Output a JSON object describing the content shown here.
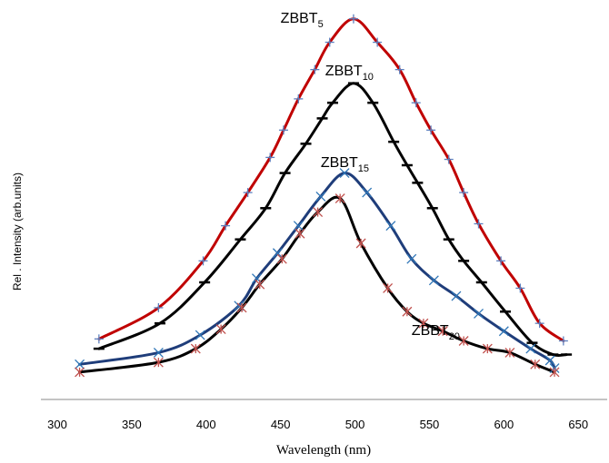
{
  "chart_data": {
    "type": "line",
    "title": "",
    "xlabel": "Wavelength (nm)",
    "ylabel": "Rel . Intensity (arb.units)",
    "xlim": [
      300,
      670
    ],
    "ylim": [
      0,
      100
    ],
    "xticks": [
      "300",
      "350",
      "400",
      "450",
      "500",
      "550",
      "600",
      "650"
    ],
    "grid": false,
    "legend": "none",
    "series": [
      {
        "name": "ZBBT5",
        "label_main": "ZBBT",
        "label_sub": "5",
        "color": "#c00000",
        "marker": "plus",
        "marker_color": "#5b7fbf",
        "x": [
          328,
          368,
          398,
          413,
          428,
          443,
          452,
          462,
          473,
          483,
          499,
          515,
          530,
          541,
          551,
          563,
          573,
          583,
          598,
          611,
          624,
          640
        ],
        "y": [
          15.5,
          23.5,
          35.5,
          44.5,
          53,
          62,
          69,
          77,
          84.5,
          91.5,
          97.5,
          91.5,
          84.5,
          76,
          69,
          61.5,
          53,
          45,
          35.5,
          28.5,
          19.5,
          15
        ]
      },
      {
        "name": "ZBBT10",
        "label_main": "ZBBT",
        "label_sub": "10",
        "color": "#000000",
        "marker": "dash",
        "marker_color": "#000000",
        "x": [
          328,
          369,
          399,
          423,
          440,
          453,
          467,
          478,
          485,
          499,
          512,
          526,
          535,
          542,
          552,
          563,
          573,
          585,
          601,
          619,
          633,
          642
        ],
        "y": [
          13,
          19.5,
          30,
          41,
          49,
          58,
          65.5,
          72,
          76,
          81,
          76,
          66,
          60,
          55.5,
          49,
          41,
          35.5,
          30,
          22.5,
          14.5,
          11.5,
          11.5
        ]
      },
      {
        "name": "ZBBT15",
        "label_main": "ZBBT",
        "label_sub": "15",
        "color": "#1f3d7a",
        "marker": "x",
        "marker_color": "#2e75b6",
        "x": [
          315,
          368,
          396,
          422,
          434,
          448,
          462,
          477,
          493,
          508,
          524,
          538,
          553,
          568,
          583,
          600,
          618,
          631,
          634
        ],
        "y": [
          9,
          12,
          16.5,
          24,
          31,
          37.5,
          44.5,
          52,
          58,
          53,
          44.5,
          36,
          30.5,
          26.5,
          22,
          17.5,
          13,
          10,
          8
        ]
      },
      {
        "name": "ZBBT20",
        "label_main": "ZBBT",
        "label_sub": "20",
        "color": "#000000",
        "marker": "asterisk",
        "marker_color": "#c0504d",
        "x": [
          315,
          368,
          393,
          410,
          424,
          436,
          451,
          463,
          475,
          490,
          504,
          522,
          535,
          546,
          559,
          573,
          589,
          604,
          621,
          634
        ],
        "y": [
          7,
          9.5,
          13,
          18,
          23.5,
          29.5,
          36,
          42.5,
          48,
          51.5,
          40,
          28.5,
          22.5,
          19.5,
          17.5,
          15,
          13,
          12,
          9,
          7
        ]
      }
    ],
    "labels": [
      {
        "series": 0,
        "x": 450,
        "y": 96.5
      },
      {
        "series": 1,
        "x": 480,
        "y": 83
      },
      {
        "series": 2,
        "x": 477,
        "y": 59.5
      },
      {
        "series": 3,
        "x": 538,
        "y": 16.5
      }
    ]
  }
}
